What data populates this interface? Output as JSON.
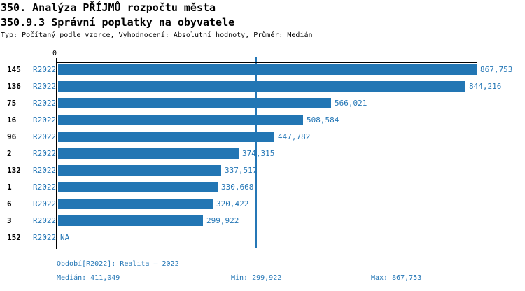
{
  "chart_data": {
    "type": "bar",
    "orientation": "horizontal",
    "title_line1": "350. Analýza PŘÍJMŮ rozpočtu města",
    "title_line2": "350.9.3 Správní poplatky na obyvatele",
    "subtitle": "Typ: Počítaný podle vzorce, Vyhodnocení: Absolutní hodnoty, Průměr: Medián",
    "series_label": "R2022",
    "categories": [
      "145",
      "136",
      "75",
      "16",
      "96",
      "2",
      "132",
      "1",
      "6",
      "3",
      "152"
    ],
    "values": [
      867753,
      844216,
      566021,
      508584,
      447782,
      374315,
      337517,
      330668,
      320422,
      299922,
      null
    ],
    "value_labels": [
      "867,753",
      "844,216",
      "566,021",
      "508,584",
      "447,782",
      "374,315",
      "337,517",
      "330,668",
      "320,422",
      "299,922",
      "NA"
    ],
    "x_axis": {
      "zero_tick_label": "0",
      "min": 0,
      "max": 867753
    },
    "median_line": {
      "value": 411049,
      "label": "411,049"
    },
    "footer": {
      "period": "Období[R2022]: Realita – 2022",
      "median": "Medián: 411,049",
      "min": "Min: 299,922",
      "max": "Max: 867,753"
    },
    "colors": {
      "bar": "#2276b4",
      "accent_text": "#2577b6",
      "axis": "#000000"
    }
  }
}
